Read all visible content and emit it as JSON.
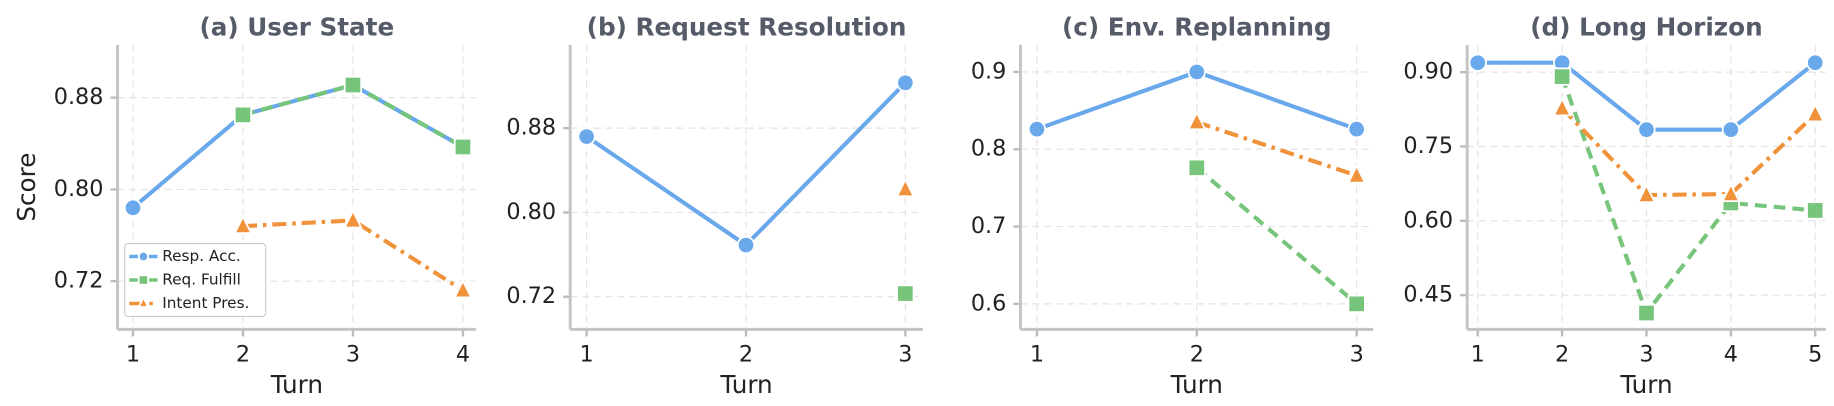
{
  "chart_data": [
    {
      "type": "line",
      "title": "(a)  User State",
      "xlabel": "Turn",
      "ylabel": "Score",
      "x": [
        1,
        2,
        3,
        4
      ],
      "xlim": [
        0.86,
        4.12
      ],
      "xticks": [
        1,
        2,
        3,
        4
      ],
      "ylim": [
        0.678,
        0.926
      ],
      "yticks": [
        0.72,
        {
          "value": 0.8,
          "label": "0.80"
        },
        0.88
      ],
      "grid": true,
      "legend": "lower left",
      "series": [
        {
          "name": "Resp. Acc.",
          "color": "#6aa8ec",
          "marker": "circle",
          "dash": "solid",
          "values": [
            0.784,
            0.865,
            0.891,
            0.837
          ]
        },
        {
          "name": "Req. Fulfill",
          "color": "#77c57a",
          "marker": "square",
          "dash": "dashed",
          "values": [
            null,
            0.865,
            0.891,
            0.837
          ]
        },
        {
          "name": "Intent Pres.",
          "color": "#f0923a",
          "marker": "triangle",
          "dash": "dashdot",
          "values": [
            null,
            0.768,
            0.773,
            0.712
          ]
        }
      ]
    },
    {
      "type": "line",
      "title": "(b)  Request Resolution",
      "xlabel": "Turn",
      "x": [
        1,
        2,
        3
      ],
      "xlim": [
        0.897,
        3.11
      ],
      "xticks": [
        1,
        2,
        3
      ],
      "ylim": [
        0.689,
        0.959
      ],
      "yticks": [
        0.72,
        {
          "value": 0.8,
          "label": "0.80"
        },
        0.88
      ],
      "grid": true,
      "series": [
        {
          "color": "#6aa8ec",
          "marker": "circle",
          "dash": "solid",
          "values": [
            0.872,
            0.769,
            0.923
          ]
        },
        {
          "color": "#77c57a",
          "marker": "square",
          "dash": "dashed",
          "values": [
            null,
            null,
            0.723
          ]
        },
        {
          "color": "#f0923a",
          "marker": "triangle",
          "dash": "dashdot",
          "values": [
            null,
            null,
            0.822
          ]
        }
      ]
    },
    {
      "type": "line",
      "title": "(c)  Env. Replanning",
      "xlabel": "Turn",
      "x": [
        1,
        2,
        3
      ],
      "xlim": [
        0.897,
        3.103
      ],
      "xticks": [
        1,
        2,
        3
      ],
      "ylim": [
        0.567,
        0.935
      ],
      "yticks": [
        0.6,
        0.7,
        0.8,
        0.9
      ],
      "grid": true,
      "series": [
        {
          "color": "#6aa8ec",
          "marker": "circle",
          "dash": "solid",
          "values": [
            0.826,
            0.9,
            0.826
          ]
        },
        {
          "color": "#77c57a",
          "marker": "square",
          "dash": "dashed",
          "values": [
            null,
            0.776,
            0.6
          ]
        },
        {
          "color": "#f0923a",
          "marker": "triangle",
          "dash": "dashdot",
          "values": [
            null,
            0.835,
            0.766
          ]
        }
      ]
    },
    {
      "type": "line",
      "title": "(d)  Long Horizon",
      "xlabel": "Turn",
      "x": [
        1,
        2,
        3,
        4,
        5
      ],
      "xlim": [
        0.875,
        5.125
      ],
      "xticks": [
        1,
        2,
        3,
        4,
        5
      ],
      "ylim": [
        0.381,
        0.955
      ],
      "yticks": [
        0.45,
        {
          "value": 0.6,
          "label": "0.60"
        },
        0.75,
        {
          "value": 0.9,
          "label": "0.90"
        }
      ],
      "grid": true,
      "series": [
        {
          "color": "#6aa8ec",
          "marker": "circle",
          "dash": "solid",
          "values": [
            0.919,
            0.919,
            0.784,
            0.784,
            0.919
          ]
        },
        {
          "color": "#77c57a",
          "marker": "square",
          "dash": "dashed",
          "values": [
            null,
            0.891,
            0.414,
            0.636,
            0.621
          ]
        },
        {
          "color": "#f0923a",
          "marker": "triangle",
          "dash": "dashdot",
          "values": [
            null,
            0.827,
            0.652,
            0.654,
            0.815
          ]
        }
      ]
    }
  ]
}
